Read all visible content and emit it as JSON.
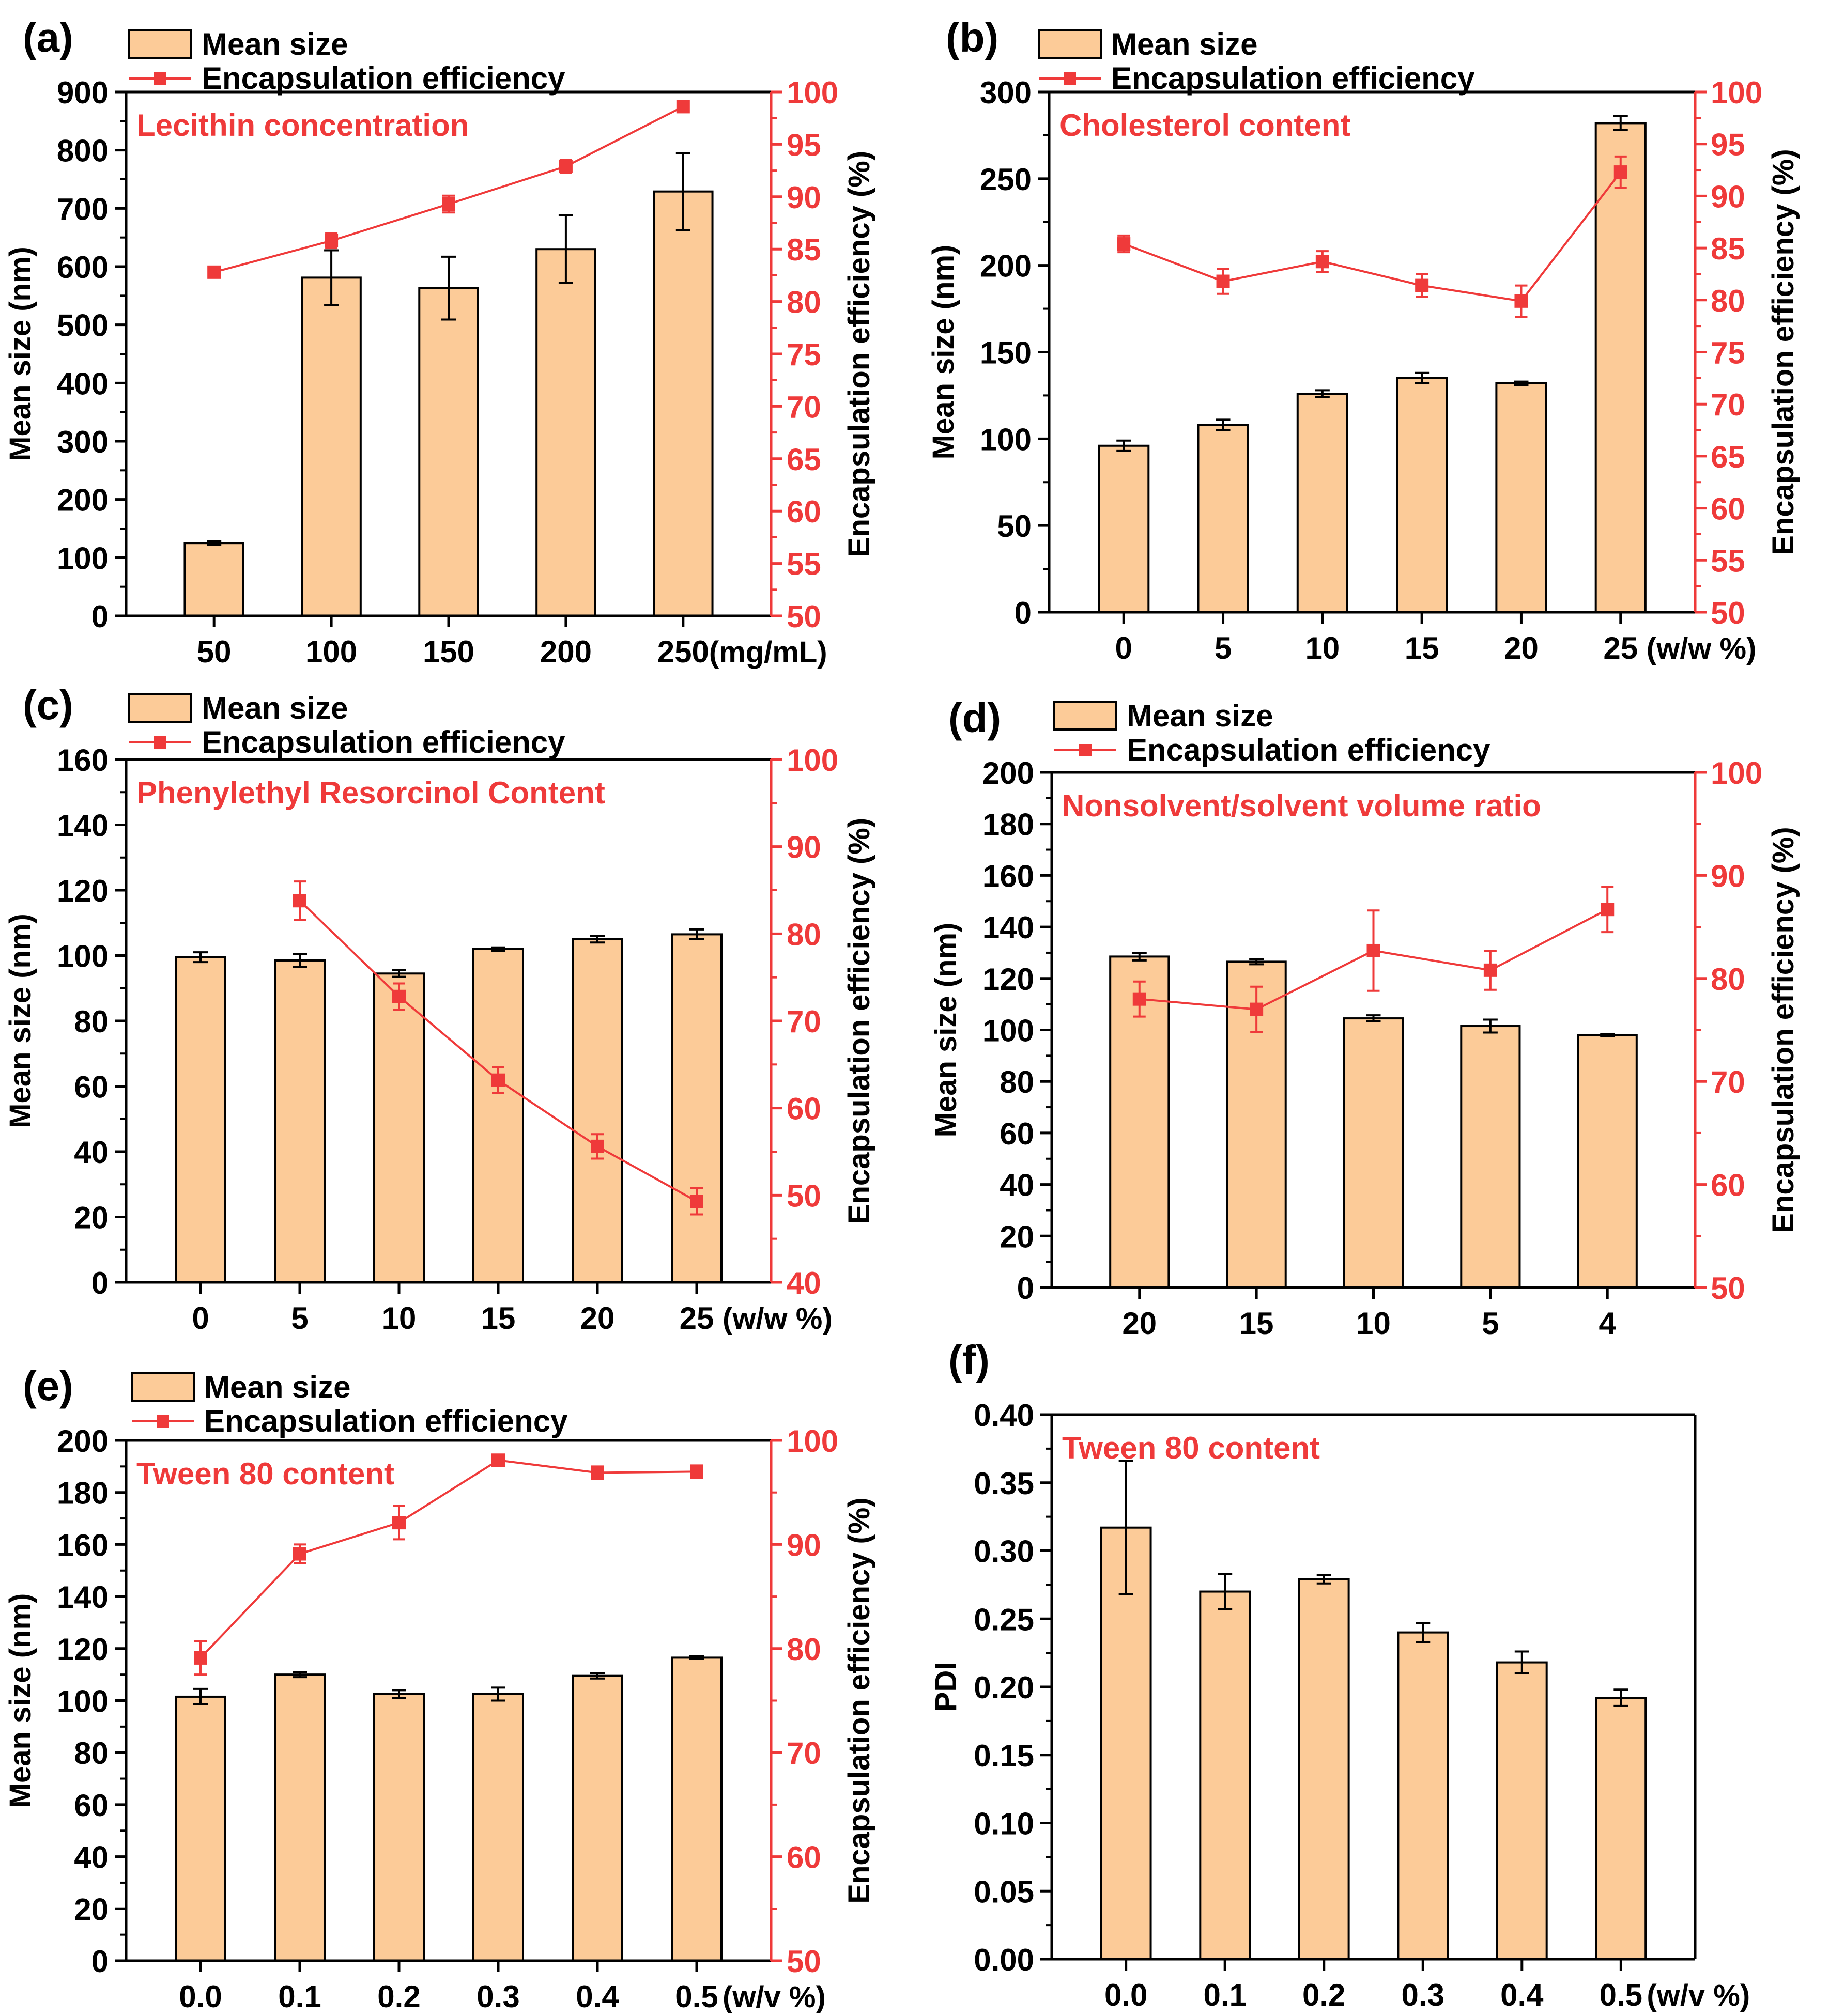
{
  "colors": {
    "bar_fill": "#FCCB98",
    "bar_stroke": "#000000",
    "line": "#EF3A3A",
    "axis": "#000000",
    "red_text": "#EF3A3A"
  },
  "chart_data": [
    {
      "panel_label": "(a)",
      "type": "bar",
      "title": "Lecithin concentration",
      "categories": [
        "50",
        "100",
        "150",
        "200",
        "250"
      ],
      "x_unit": "(mg/mL)",
      "ylabel": "Mean size (nm)",
      "ylim": [
        0,
        900
      ],
      "yticks": [
        0,
        100,
        200,
        300,
        400,
        500,
        600,
        700,
        800,
        900
      ],
      "y2label": "Encapsulation efficiency (%)",
      "y2lim": [
        50,
        100
      ],
      "y2ticks": [
        50,
        55,
        60,
        65,
        70,
        75,
        80,
        85,
        90,
        95,
        100
      ],
      "legend": [
        "Mean size",
        "Encapsulation efficiency"
      ],
      "bar_values": [
        125,
        581,
        563,
        630,
        729
      ],
      "bar_errors": [
        3,
        47,
        54,
        58,
        66
      ],
      "line_values": [
        82.8,
        85.8,
        89.3,
        92.9,
        98.6
      ],
      "line_errors": [
        0.2,
        0.7,
        0.8,
        0.6,
        0.5
      ]
    },
    {
      "panel_label": "(b)",
      "type": "bar",
      "title": "Cholesterol content",
      "categories": [
        "0",
        "5",
        "10",
        "15",
        "20",
        "25"
      ],
      "x_unit": "(w/w %)",
      "ylabel": "Mean size (nm)",
      "ylim": [
        0,
        300
      ],
      "yticks": [
        0,
        50,
        100,
        150,
        200,
        250,
        300
      ],
      "y2label": "Encapsulation efficiency (%)",
      "y2lim": [
        50,
        100
      ],
      "y2ticks": [
        50,
        55,
        60,
        65,
        70,
        75,
        80,
        85,
        90,
        95,
        100
      ],
      "legend": [
        "Mean size",
        "Encapsulation efficiency"
      ],
      "bar_values": [
        96,
        108,
        126,
        135,
        132,
        282
      ],
      "bar_errors": [
        3,
        3,
        2,
        3,
        1,
        4
      ],
      "line_values": [
        85.4,
        81.8,
        83.7,
        81.4,
        79.9,
        92.3
      ],
      "line_errors": [
        0.8,
        1.2,
        1.0,
        1.1,
        1.5,
        1.5
      ]
    },
    {
      "panel_label": "(c)",
      "type": "bar",
      "title": "Phenylethyl Resorcinol Content",
      "categories": [
        "0",
        "5",
        "10",
        "15",
        "20",
        "25"
      ],
      "x_unit": "(w/w %)",
      "ylabel": "Mean size (nm)",
      "ylim": [
        0,
        160
      ],
      "yticks": [
        0,
        20,
        40,
        60,
        80,
        100,
        120,
        140,
        160
      ],
      "y2label": "Encapsulation efficiency (%)",
      "y2lim": [
        40,
        100
      ],
      "y2ticks": [
        40,
        50,
        60,
        70,
        80,
        90,
        100
      ],
      "legend": [
        "Mean size",
        "Encapsulation efficiency"
      ],
      "bar_values": [
        99.5,
        98.5,
        94.5,
        102,
        105,
        106.5
      ],
      "bar_errors": [
        1.5,
        2,
        1,
        0.5,
        1,
        1.5
      ],
      "line_values": [
        null,
        83.8,
        72.8,
        63.2,
        55.6,
        49.3
      ],
      "line_errors": [
        null,
        2.2,
        1.5,
        1.5,
        1.4,
        1.5
      ]
    },
    {
      "panel_label": "(d)",
      "type": "bar",
      "title": "Nonsolvent/solvent volume ratio",
      "categories": [
        "20",
        "15",
        "10",
        "5",
        "4"
      ],
      "x_unit": "",
      "ylabel": "Mean size (nm)",
      "ylim": [
        0,
        200
      ],
      "yticks": [
        0,
        20,
        40,
        60,
        80,
        100,
        120,
        140,
        160,
        180,
        200
      ],
      "y2label": "Encapsulation efficiency (%)",
      "y2lim": [
        50,
        100
      ],
      "y2ticks": [
        50,
        60,
        70,
        80,
        90,
        100
      ],
      "legend": [
        "Mean size",
        "Encapsulation efficiency"
      ],
      "bar_values": [
        128.5,
        126.5,
        104.5,
        101.5,
        98
      ],
      "bar_errors": [
        1.5,
        1,
        1.2,
        2.5,
        0.5
      ],
      "line_values": [
        78,
        77,
        82.7,
        80.8,
        86.7
      ],
      "line_errors": [
        1.7,
        2.2,
        3.9,
        1.9,
        2.2
      ]
    },
    {
      "panel_label": "(e)",
      "type": "bar",
      "title": "Tween 80 content",
      "categories": [
        "0.0",
        "0.1",
        "0.2",
        "0.3",
        "0.4",
        "0.5"
      ],
      "x_unit": "(w/v %)",
      "ylabel": "Mean size (nm)",
      "ylim": [
        0,
        200
      ],
      "yticks": [
        0,
        20,
        40,
        60,
        80,
        100,
        120,
        140,
        160,
        180,
        200
      ],
      "y2label": "Encapsulation efficiency (%)",
      "y2lim": [
        50,
        100
      ],
      "y2ticks": [
        50,
        60,
        70,
        80,
        90,
        100
      ],
      "legend": [
        "Mean size",
        "Encapsulation efficiency"
      ],
      "bar_values": [
        101.5,
        110,
        102.5,
        102.5,
        109.5,
        116.5
      ],
      "bar_errors": [
        3,
        1,
        1.5,
        2.5,
        1,
        0.5
      ],
      "line_values": [
        79.1,
        89.1,
        92.1,
        98.1,
        96.9,
        97
      ],
      "line_errors": [
        1.6,
        0.9,
        1.6,
        0.3,
        0.6,
        0.6
      ]
    },
    {
      "panel_label": "(f)",
      "type": "bar",
      "title": "Tween 80 content",
      "categories": [
        "0.0",
        "0.1",
        "0.2",
        "0.3",
        "0.4",
        "0.5"
      ],
      "x_unit": "(w/v %)",
      "ylabel": "PDI",
      "ylim": [
        0,
        0.4
      ],
      "yticks": [
        "0.00",
        "0.05",
        "0.10",
        "0.15",
        "0.20",
        "0.25",
        "0.30",
        "0.35",
        "0.40"
      ],
      "legend": [],
      "bar_values": [
        0.317,
        0.27,
        0.279,
        0.24,
        0.218,
        0.192
      ],
      "bar_errors": [
        0.049,
        0.013,
        0.003,
        0.007,
        0.008,
        0.006
      ]
    }
  ]
}
